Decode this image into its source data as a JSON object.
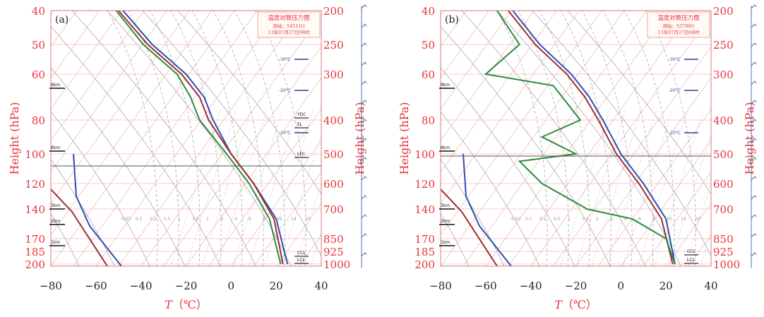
{
  "chart_data": [
    {
      "type": "line",
      "panel_label": "(a)",
      "title": "温度对数压力图",
      "station": "测站：54511()",
      "time": "13年07月27日08时",
      "xlabel_prefix": "T",
      "xlabel_unit": "（℃）",
      "ylabel_left": "Height (hPa)",
      "ylabel_right": "Height (hPa)",
      "xlim": [
        -80,
        40
      ],
      "ylim": [
        200,
        40
      ],
      "x_ticks": [
        "−80",
        "−60",
        "−40",
        "−20",
        "0",
        "20",
        "40"
      ],
      "left_ticks": [
        "40",
        "50",
        "60",
        "80",
        "100",
        "120",
        "140",
        "170",
        "185",
        "200"
      ],
      "right_ticks": [
        "200",
        "250",
        "300",
        "400",
        "500",
        "600",
        "700",
        "850",
        "925",
        "1000"
      ],
      "height_markers": [
        "9km",
        "6km",
        "3km",
        "2km",
        "1km"
      ],
      "isotherm_labels": [
        "-30℃",
        "-20℃",
        "-10℃"
      ],
      "level_labels": [
        "YDC",
        "EL",
        "LFC",
        "CCL",
        "LCL"
      ],
      "mixing_ratio_labels": [
        "0.03",
        "0.1",
        "0.2",
        "0.5",
        "1",
        "1.5",
        "2",
        "3",
        "4",
        "6",
        "8",
        "10",
        "14",
        "20"
      ],
      "series": [
        {
          "name": "",
          "color": "#2e4fb0",
          "x": [
            -48,
            -35,
            -20,
            -12,
            -8,
            0,
            10,
            20,
            25
          ],
          "y": [
            40,
            50,
            60,
            70,
            80,
            100,
            120,
            150,
            200
          ]
        },
        {
          "name": "",
          "color": "#9e2e2e",
          "x": [
            -50,
            -37,
            -22,
            -14,
            -10,
            0,
            10,
            19,
            23
          ],
          "y": [
            40,
            50,
            60,
            70,
            80,
            100,
            120,
            150,
            200
          ]
        },
        {
          "name": "",
          "color": "#2c8a3e",
          "x": [
            -51,
            -39,
            -24,
            -18,
            -14,
            -2,
            8,
            17,
            22
          ],
          "y": [
            40,
            50,
            60,
            70,
            80,
            100,
            120,
            150,
            200
          ]
        }
      ]
    },
    {
      "type": "line",
      "panel_label": "(b)",
      "title": "温度对数压力图",
      "station": "测站：53798()",
      "time": "13年07月27日08时",
      "xlabel_prefix": "T",
      "xlabel_unit": "（℃）",
      "ylabel_left": "Height (hPa)",
      "ylabel_right": "Height (hPa)",
      "xlim": [
        -80,
        40
      ],
      "ylim": [
        200,
        40
      ],
      "x_ticks": [
        "−80",
        "−60",
        "−40",
        "−20",
        "0",
        "20",
        "40"
      ],
      "left_ticks": [
        "40",
        "50",
        "60",
        "80",
        "100",
        "120",
        "140",
        "170",
        "185",
        "200"
      ],
      "right_ticks": [
        "200",
        "250",
        "300",
        "400",
        "500",
        "600",
        "700",
        "850",
        "925",
        "1000"
      ],
      "height_markers": [
        "9km",
        "6km",
        "3km",
        "2km",
        "1km"
      ],
      "isotherm_labels": [
        "-30℃",
        "-20℃",
        "-10℃"
      ],
      "level_labels": [
        "CCL",
        "LCL"
      ],
      "mixing_ratio_labels": [
        "0.03",
        "0.1",
        "0.2",
        "0.5",
        "1",
        "1.5",
        "2",
        "3",
        "4",
        "6",
        "8",
        "10",
        "14",
        "20"
      ],
      "series": [
        {
          "name": "",
          "color": "#2e4fb0",
          "x": [
            -48,
            -36,
            -22,
            -14,
            -8,
            0,
            10,
            20,
            24
          ],
          "y": [
            40,
            50,
            60,
            70,
            80,
            100,
            120,
            150,
            200
          ]
        },
        {
          "name": "",
          "color": "#9e2e2e",
          "x": [
            -50,
            -38,
            -24,
            -16,
            -10,
            -2,
            8,
            18,
            23
          ],
          "y": [
            40,
            50,
            60,
            70,
            80,
            100,
            120,
            150,
            200
          ]
        },
        {
          "name": "",
          "color": "#2c8a3e",
          "x": [
            -55,
            -45,
            -60,
            -30,
            -18,
            -35,
            -20,
            -45,
            -35,
            -15,
            5,
            20,
            24
          ],
          "y": [
            40,
            50,
            60,
            65,
            80,
            90,
            100,
            105,
            120,
            140,
            150,
            170,
            200
          ]
        }
      ]
    }
  ]
}
